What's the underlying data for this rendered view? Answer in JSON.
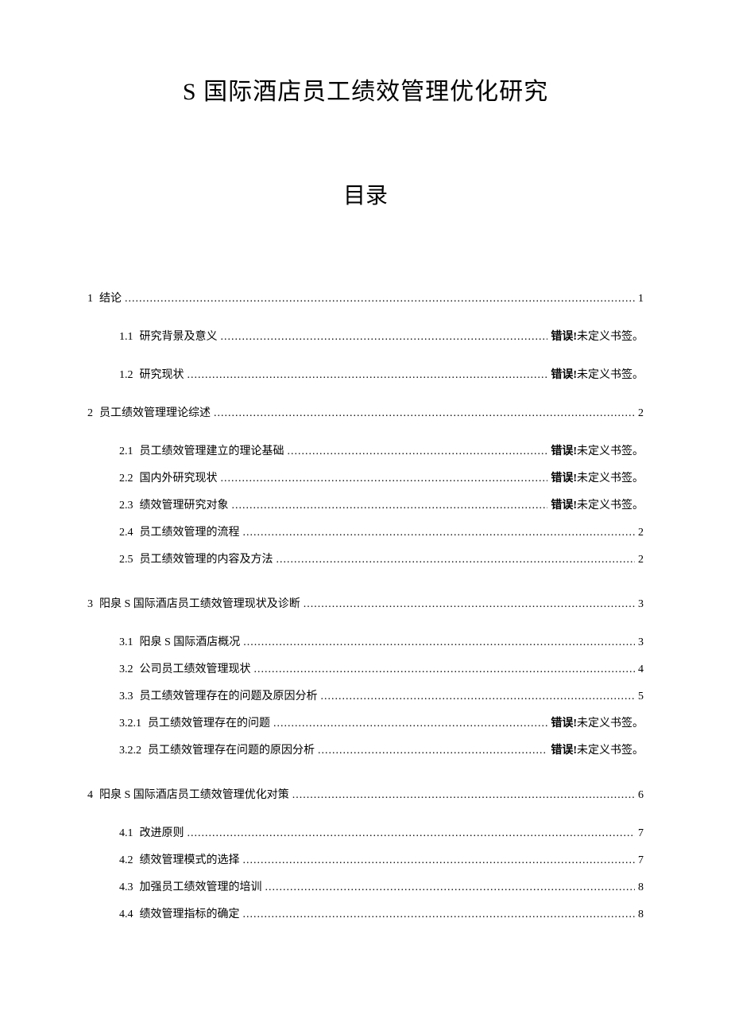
{
  "title": "S 国际酒店员工绩效管理优化研究",
  "tocHeading": "目录",
  "errorPrefix": "错误!",
  "errorSuffix": "未定义书签。",
  "entries": {
    "e1": {
      "num": "1",
      "label": "结论",
      "page": "1"
    },
    "e1_1": {
      "num": "1.1",
      "label": "研究背景及意义"
    },
    "e1_2": {
      "num": "1.2",
      "label": "研究现状"
    },
    "e2": {
      "num": "2",
      "label": "员工绩效管理理论综述",
      "page": "2"
    },
    "e2_1": {
      "num": "2.1",
      "label": "员工绩效管理建立的理论基础"
    },
    "e2_2": {
      "num": "2.2",
      "label": "国内外研究现状"
    },
    "e2_3": {
      "num": "2.3",
      "label": "绩效管理研究对象"
    },
    "e2_4": {
      "num": "2.4",
      "label": "员工绩效管理的流程",
      "page": "2"
    },
    "e2_5": {
      "num": "2.5",
      "label": "员工绩效管理的内容及方法",
      "page": "2"
    },
    "e3": {
      "num": "3",
      "label": "阳泉 S 国际酒店员工绩效管理现状及诊断",
      "page": "3"
    },
    "e3_1": {
      "num": "3.1",
      "label": "阳泉 S 国际酒店概况",
      "page": "3"
    },
    "e3_2": {
      "num": "3.2",
      "label": "公司员工绩效管理现状",
      "page": "4"
    },
    "e3_3": {
      "num": "3.3",
      "label": "员工绩效管理存在的问题及原因分析",
      "page": "5"
    },
    "e3_2_1": {
      "num": "3.2.1",
      "label": "员工绩效管理存在的问题"
    },
    "e3_2_2": {
      "num": "3.2.2",
      "label": "员工绩效管理存在问题的原因分析"
    },
    "e4": {
      "num": "4",
      "label": "阳泉 S 国际酒店员工绩效管理优化对策",
      "page": "6"
    },
    "e4_1": {
      "num": "4.1",
      "label": "改进原则",
      "page": "7"
    },
    "e4_2": {
      "num": "4.2",
      "label": "绩效管理模式的选择",
      "page": "7"
    },
    "e4_3": {
      "num": "4.3",
      "label": "加强员工绩效管理的培训",
      "page": "8"
    },
    "e4_4": {
      "num": "4.4",
      "label": "绩效管理指标的确定",
      "page": "8"
    }
  }
}
